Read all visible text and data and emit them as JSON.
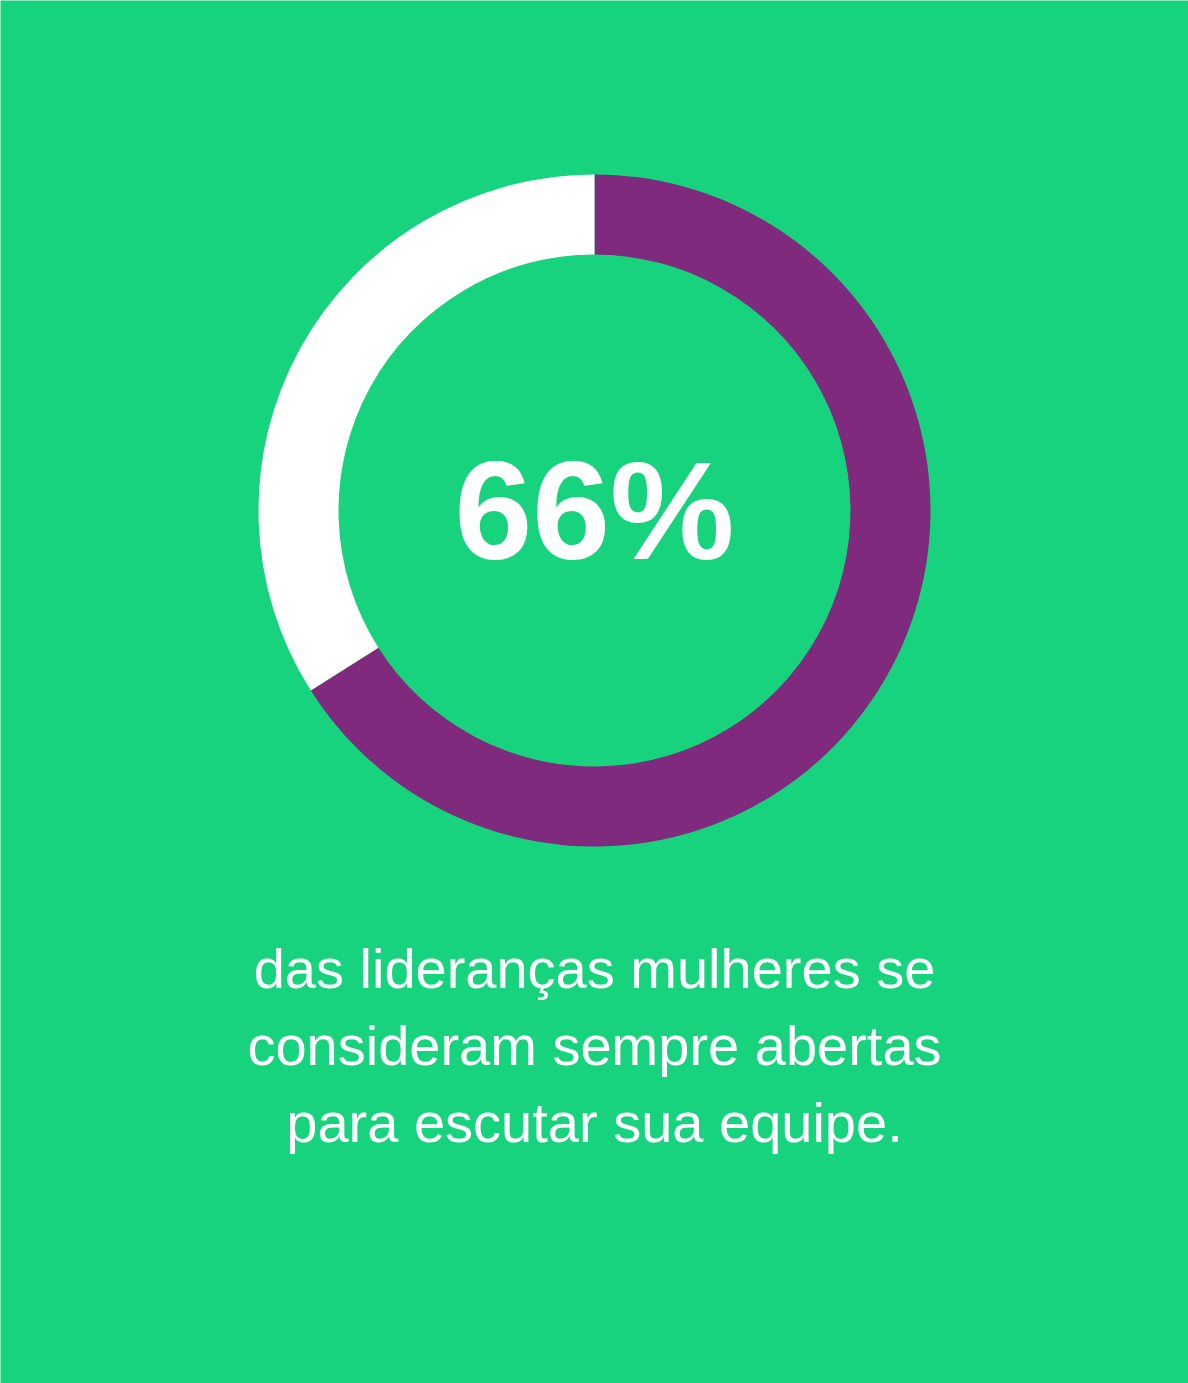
{
  "chart_data": {
    "type": "donut",
    "categories": [
      null,
      null
    ],
    "values": [
      66,
      34
    ],
    "colors": [
      "#7f2a7c",
      "#ffffff"
    ],
    "annotations": [
      "66%",
      "das lideranças mulheres se consideram sempre abertas para escutar sua equipe."
    ]
  }
}
